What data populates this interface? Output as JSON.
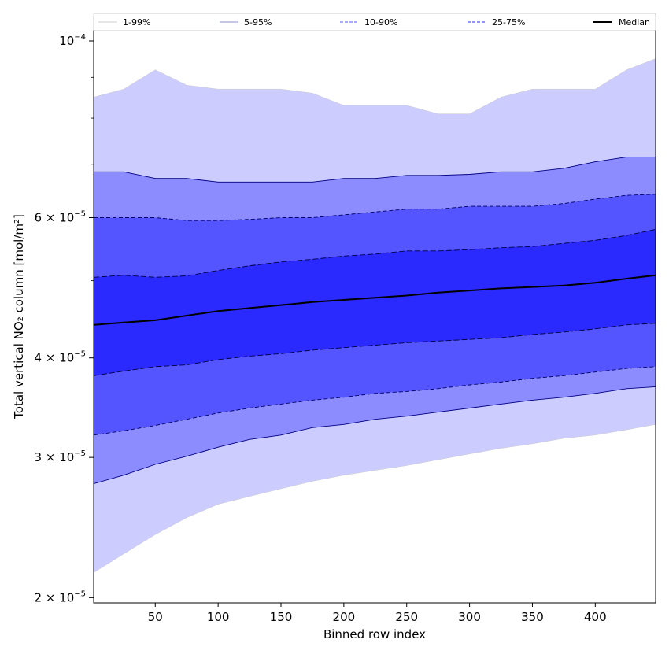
{
  "chart_data": {
    "type": "area",
    "title": "",
    "xlabel": "Binned row index",
    "ylabel": "Total vertical NO₂ column [mol/m²]",
    "y_scale": "log",
    "xlim": [
      1,
      448
    ],
    "ylim": [
      1.97e-05,
      0.000103
    ],
    "x_ticks": [
      50,
      100,
      150,
      200,
      250,
      300,
      350,
      400
    ],
    "y_ticks": [
      {
        "value": 2e-05,
        "mantissa": "2",
        "exponent": "−5",
        "times": true
      },
      {
        "value": 3e-05,
        "mantissa": "3",
        "exponent": "−5",
        "times": true
      },
      {
        "value": 4e-05,
        "mantissa": "4",
        "exponent": "−5",
        "times": true
      },
      {
        "value": 6e-05,
        "mantissa": "6",
        "exponent": "−5",
        "times": true
      },
      {
        "value": 0.0001,
        "mantissa": "10",
        "exponent": "−4",
        "times": false
      }
    ],
    "legend_position": "top",
    "grid": false,
    "x": [
      1,
      25,
      50,
      75,
      100,
      125,
      150,
      175,
      200,
      225,
      250,
      275,
      300,
      325,
      350,
      375,
      400,
      425,
      448
    ],
    "bands": [
      {
        "name": "1-99%",
        "fill": "#ccccff",
        "line_color": "#cccccc",
        "dash": "",
        "lower": [
          2.15e-05,
          2.27e-05,
          2.4e-05,
          2.52e-05,
          2.62e-05,
          2.68e-05,
          2.74e-05,
          2.8e-05,
          2.85e-05,
          2.89e-05,
          2.93e-05,
          2.98e-05,
          3.03e-05,
          3.08e-05,
          3.12e-05,
          3.17e-05,
          3.2e-05,
          3.25e-05,
          3.3e-05
        ],
        "upper": [
          8.5e-05,
          8.7e-05,
          9.2e-05,
          8.8e-05,
          8.7e-05,
          8.7e-05,
          8.7e-05,
          8.6e-05,
          8.3e-05,
          8.3e-05,
          8.3e-05,
          8.1e-05,
          8.1e-05,
          8.5e-05,
          8.7e-05,
          8.7e-05,
          8.7e-05,
          9.2e-05,
          9.5e-05
        ]
      },
      {
        "name": "5-95%",
        "fill": "#8c8cff",
        "line_color": "#000080",
        "dash": "",
        "lower": [
          2.78e-05,
          2.85e-05,
          2.94e-05,
          3.01e-05,
          3.09e-05,
          3.16e-05,
          3.2e-05,
          3.27e-05,
          3.3e-05,
          3.35e-05,
          3.38e-05,
          3.42e-05,
          3.46e-05,
          3.5e-05,
          3.54e-05,
          3.57e-05,
          3.61e-05,
          3.66e-05,
          3.68e-05
        ],
        "upper": [
          6.85e-05,
          6.85e-05,
          6.72e-05,
          6.72e-05,
          6.65e-05,
          6.65e-05,
          6.65e-05,
          6.65e-05,
          6.72e-05,
          6.72e-05,
          6.78e-05,
          6.78e-05,
          6.8e-05,
          6.85e-05,
          6.85e-05,
          6.92e-05,
          7.05e-05,
          7.15e-05,
          7.15e-05
        ]
      },
      {
        "name": "10-90%",
        "fill": "#5555ff",
        "line_color": "#000060",
        "dash": "5,3",
        "lower": [
          3.2e-05,
          3.24e-05,
          3.29e-05,
          3.35e-05,
          3.41e-05,
          3.46e-05,
          3.5e-05,
          3.54e-05,
          3.57e-05,
          3.61e-05,
          3.63e-05,
          3.66e-05,
          3.7e-05,
          3.73e-05,
          3.77e-05,
          3.8e-05,
          3.84e-05,
          3.88e-05,
          3.9e-05
        ],
        "upper": [
          6e-05,
          6e-05,
          6e-05,
          5.95e-05,
          5.95e-05,
          5.97e-05,
          6e-05,
          6e-05,
          6.05e-05,
          6.1e-05,
          6.15e-05,
          6.15e-05,
          6.2e-05,
          6.2e-05,
          6.2e-05,
          6.25e-05,
          6.33e-05,
          6.4e-05,
          6.42e-05
        ]
      },
      {
        "name": "25-75%",
        "fill": "#2a2aff",
        "line_color": "#000040",
        "dash": "7,3",
        "lower": [
          3.8e-05,
          3.85e-05,
          3.9e-05,
          3.92e-05,
          3.98e-05,
          4.02e-05,
          4.05e-05,
          4.09e-05,
          4.12e-05,
          4.15e-05,
          4.18e-05,
          4.2e-05,
          4.22e-05,
          4.24e-05,
          4.28e-05,
          4.31e-05,
          4.35e-05,
          4.4e-05,
          4.42e-05
        ],
        "upper": [
          5.05e-05,
          5.08e-05,
          5.05e-05,
          5.07e-05,
          5.15e-05,
          5.22e-05,
          5.28e-05,
          5.32e-05,
          5.37e-05,
          5.4e-05,
          5.45e-05,
          5.45e-05,
          5.47e-05,
          5.5e-05,
          5.52e-05,
          5.57e-05,
          5.62e-05,
          5.7e-05,
          5.8e-05
        ]
      }
    ],
    "series": [
      {
        "name": "Median",
        "color": "#000000",
        "y": [
          4.4e-05,
          4.43e-05,
          4.46e-05,
          4.52e-05,
          4.58e-05,
          4.62e-05,
          4.66e-05,
          4.7e-05,
          4.73e-05,
          4.76e-05,
          4.79e-05,
          4.83e-05,
          4.86e-05,
          4.89e-05,
          4.91e-05,
          4.93e-05,
          4.97e-05,
          5.03e-05,
          5.08e-05
        ]
      }
    ]
  }
}
